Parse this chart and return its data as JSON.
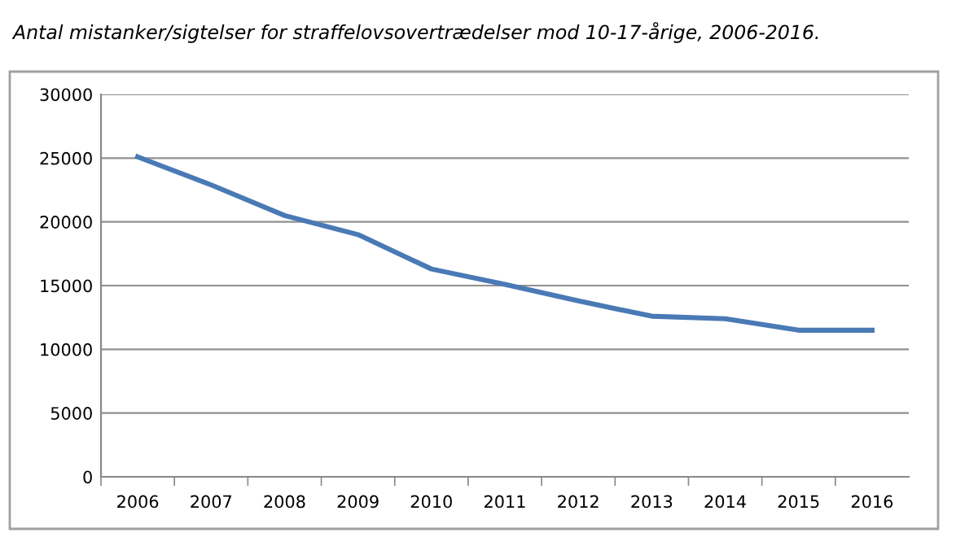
{
  "chart_data": {
    "type": "line",
    "title": "Antal mistanker/sigtelser for straffelovsovertrædelser mod 10-17-årige, 2006-2016.",
    "categories": [
      "2006",
      "2007",
      "2008",
      "2009",
      "2010",
      "2011",
      "2012",
      "2013",
      "2014",
      "2015",
      "2016"
    ],
    "series": [
      {
        "color": "#4a7ab5",
        "values": [
          25100,
          22900,
          20500,
          19000,
          16300,
          15100,
          13800,
          12600,
          12400,
          11500,
          11500
        ]
      }
    ],
    "ylim": [
      0,
      30000
    ],
    "yticks": [
      0,
      5000,
      10000,
      15000,
      20000,
      25000,
      30000
    ],
    "grid": "y",
    "marker": "none",
    "line_style": "solid"
  }
}
